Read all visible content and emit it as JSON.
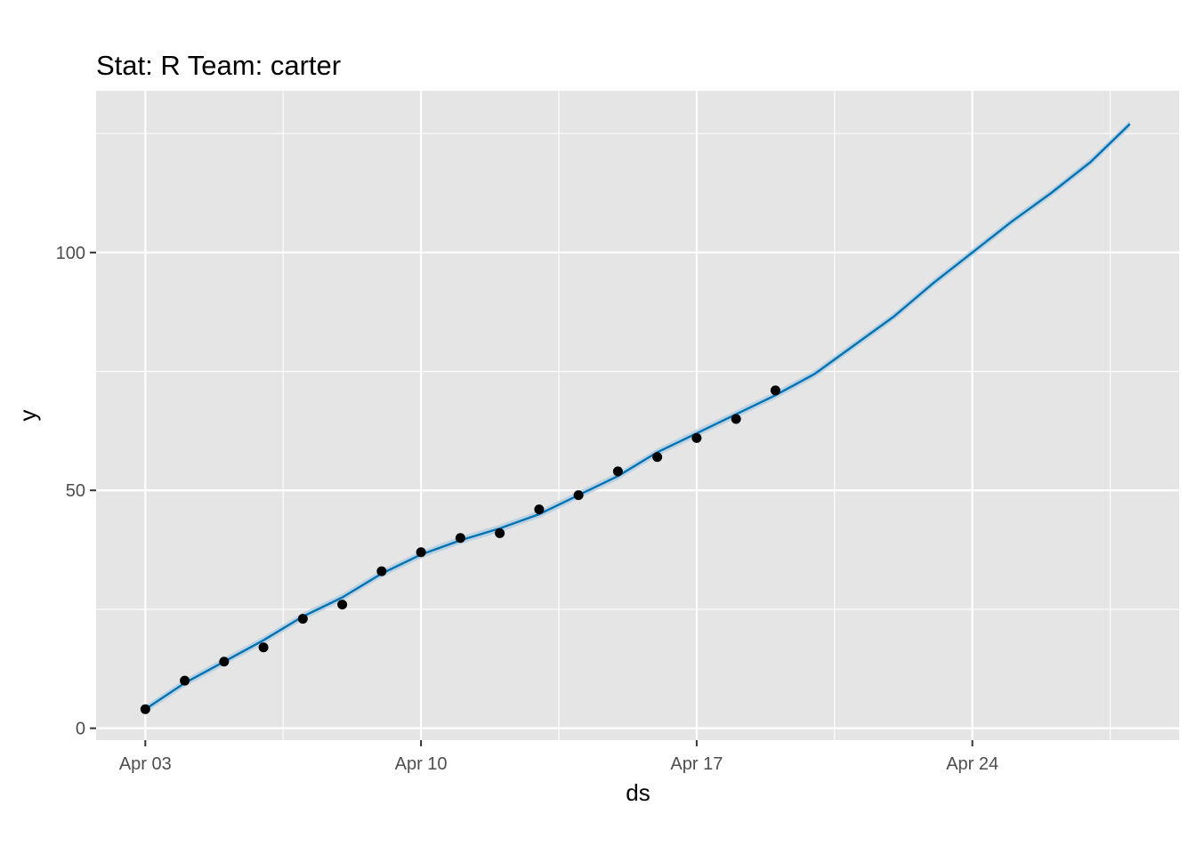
{
  "chart_data": {
    "type": "line",
    "title": "Stat: R Team: carter",
    "xlabel": "ds",
    "ylabel": "y",
    "x_axis": {
      "kind": "date",
      "range": [
        "2020-04-01 18:00",
        "2020-04-29 06:00"
      ],
      "ticks": [
        {
          "date": "2020-04-03",
          "label": "Apr 03"
        },
        {
          "date": "2020-04-10",
          "label": "Apr 10"
        },
        {
          "date": "2020-04-17",
          "label": "Apr 17"
        },
        {
          "date": "2020-04-24",
          "label": "Apr 24"
        }
      ]
    },
    "y_axis": {
      "range": [
        -2.5,
        134
      ],
      "ticks": [
        0,
        50,
        100
      ],
      "minor_ticks": [
        25,
        75,
        125
      ]
    },
    "grid": true,
    "legend": "none",
    "colors": {
      "panel_background": "#e5e5e5",
      "grid": "#ffffff",
      "points": "#000000",
      "forecast_line": "#0072b2",
      "uncertainty_band": "#b6cfe2"
    },
    "series": [
      {
        "type": "scatter",
        "points": [
          {
            "x": "2020-04-03",
            "y": 4
          },
          {
            "x": "2020-04-04",
            "y": 10
          },
          {
            "x": "2020-04-05",
            "y": 14
          },
          {
            "x": "2020-04-06",
            "y": 17
          },
          {
            "x": "2020-04-07",
            "y": 23
          },
          {
            "x": "2020-04-08",
            "y": 26
          },
          {
            "x": "2020-04-09",
            "y": 33
          },
          {
            "x": "2020-04-10",
            "y": 37
          },
          {
            "x": "2020-04-11",
            "y": 40
          },
          {
            "x": "2020-04-12",
            "y": 41
          },
          {
            "x": "2020-04-13",
            "y": 46
          },
          {
            "x": "2020-04-14",
            "y": 49
          },
          {
            "x": "2020-04-15",
            "y": 54
          },
          {
            "x": "2020-04-16",
            "y": 57
          },
          {
            "x": "2020-04-17",
            "y": 61
          },
          {
            "x": "2020-04-18",
            "y": 65
          },
          {
            "x": "2020-04-19",
            "y": 71
          }
        ]
      },
      {
        "type": "line",
        "points": [
          {
            "x": "2020-04-03",
            "y": 4
          },
          {
            "x": "2020-04-04",
            "y": 9.5
          },
          {
            "x": "2020-04-05",
            "y": 14
          },
          {
            "x": "2020-04-06",
            "y": 18.5
          },
          {
            "x": "2020-04-07",
            "y": 23.5
          },
          {
            "x": "2020-04-08",
            "y": 27.5
          },
          {
            "x": "2020-04-09",
            "y": 32.5
          },
          {
            "x": "2020-04-10",
            "y": 36.5
          },
          {
            "x": "2020-04-11",
            "y": 39.5
          },
          {
            "x": "2020-04-12",
            "y": 42
          },
          {
            "x": "2020-04-13",
            "y": 45
          },
          {
            "x": "2020-04-14",
            "y": 49
          },
          {
            "x": "2020-04-15",
            "y": 53
          },
          {
            "x": "2020-04-16",
            "y": 58
          },
          {
            "x": "2020-04-17",
            "y": 62
          },
          {
            "x": "2020-04-18",
            "y": 66
          },
          {
            "x": "2020-04-19",
            "y": 70
          },
          {
            "x": "2020-04-20",
            "y": 74.5
          },
          {
            "x": "2020-04-21",
            "y": 80.5
          },
          {
            "x": "2020-04-22",
            "y": 86.5
          },
          {
            "x": "2020-04-23",
            "y": 93.5
          },
          {
            "x": "2020-04-24",
            "y": 100
          },
          {
            "x": "2020-04-25",
            "y": 106.5
          },
          {
            "x": "2020-04-26",
            "y": 112.5
          },
          {
            "x": "2020-04-27",
            "y": 119
          },
          {
            "x": "2020-04-28",
            "y": 127
          }
        ],
        "band_halfwidth": 0.8
      }
    ]
  }
}
